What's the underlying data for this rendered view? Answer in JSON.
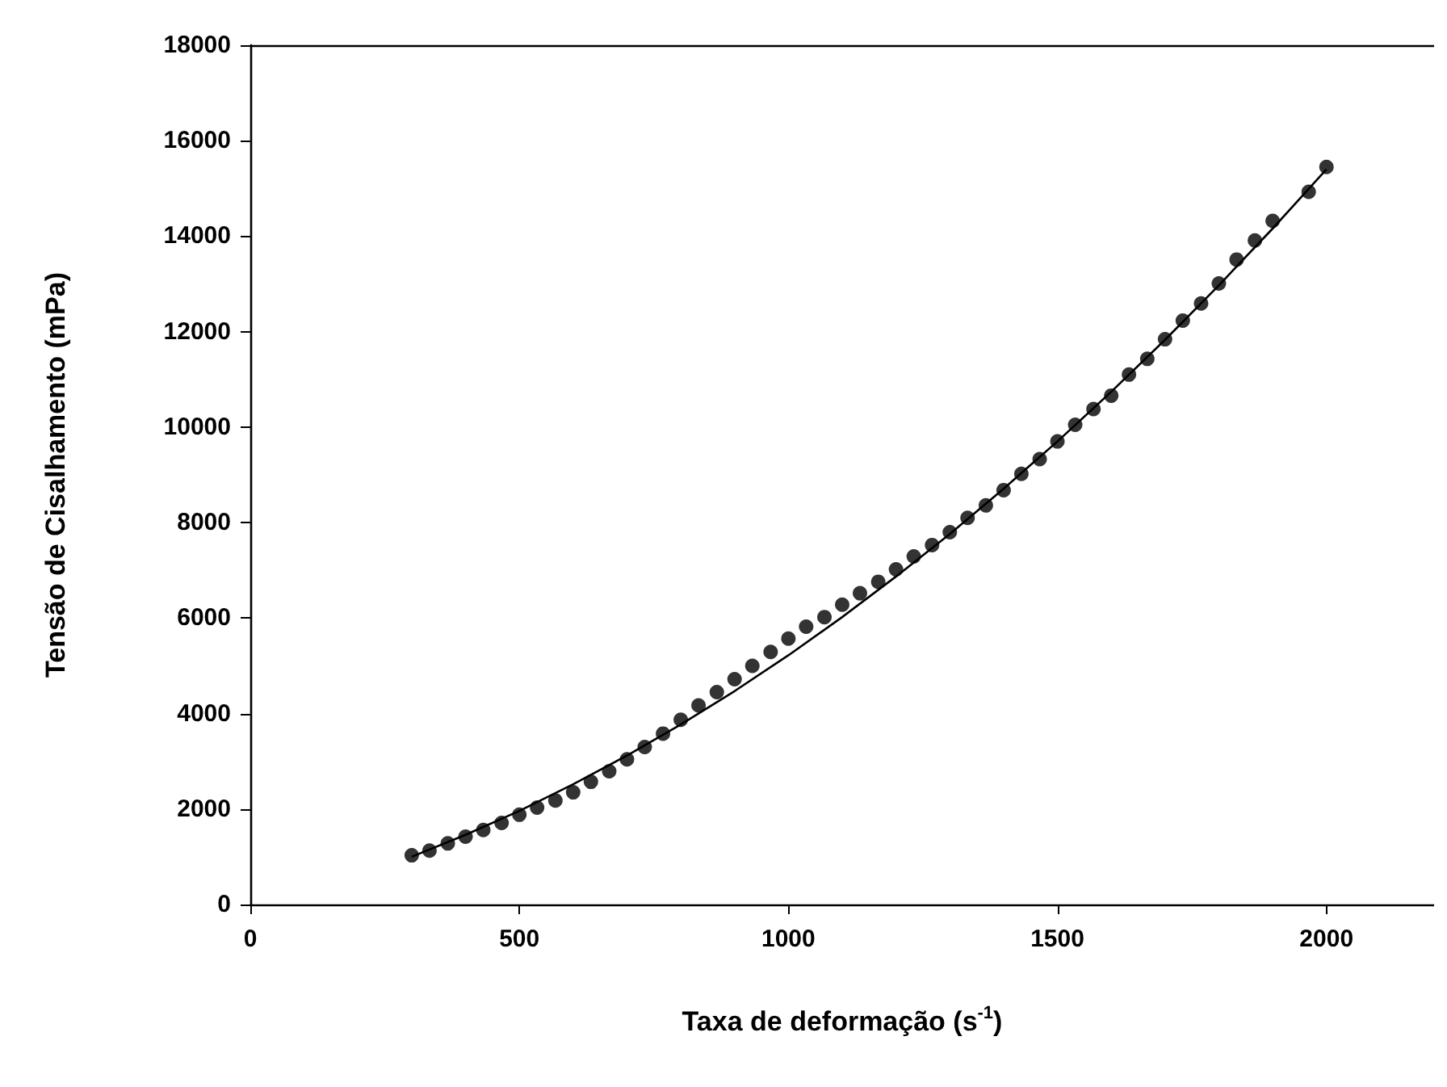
{
  "chart_data": {
    "type": "scatter",
    "xlabel": "Taxa de deformação (s$^{-1}$)",
    "ylabel": "Tensão de Cisalhamento (mPa)",
    "xlim": [
      0,
      2200
    ],
    "xticks": [
      0,
      500,
      1000,
      1500,
      2000
    ],
    "ylim": [
      0,
      18000
    ],
    "yticks": [
      0,
      2000,
      4000,
      6000,
      8000,
      10000,
      12000,
      14000,
      16000,
      18000
    ],
    "grid": false,
    "marker": "circle",
    "series": [
      {
        "color": "#000000",
        "x": [
          300,
          333,
          367,
          400,
          433,
          467,
          500,
          533,
          567,
          600,
          633,
          667,
          700,
          733,
          767,
          800,
          833,
          867,
          900,
          933,
          967,
          1000,
          1033,
          1067,
          1100,
          1133,
          1167,
          1200,
          1233,
          1267,
          1300,
          1333,
          1367,
          1400,
          1433,
          1467,
          1500,
          1533,
          1567,
          1600,
          1633,
          1667,
          1700,
          1733,
          1767,
          1800,
          1833,
          1867,
          1900,
          1967,
          2000
        ],
        "values": [
          1030,
          1130,
          1280,
          1420,
          1560,
          1710,
          1880,
          2030,
          2180,
          2350,
          2570,
          2790,
          3040,
          3300,
          3580,
          3870,
          4170,
          4450,
          4720,
          5000,
          5290,
          5570,
          5820,
          6020,
          6280,
          6520,
          6760,
          7020,
          7290,
          7530,
          7800,
          8100,
          8360,
          8680,
          9020,
          9330,
          9700,
          10050,
          10380,
          10660,
          11100,
          11430,
          11840,
          12230,
          12590,
          13010,
          13510,
          13910,
          14320,
          14930,
          15450
        ]
      },
      {
        "type": "line",
        "color": "#000000",
        "marker": "none",
        "line_style": "solid",
        "x": [
          300,
          400,
          500,
          600,
          700,
          800,
          900,
          1000,
          1100,
          1200,
          1300,
          1400,
          1500,
          1600,
          1700,
          1800,
          1900,
          2000
        ],
        "values": [
          1000,
          1460,
          1960,
          2520,
          3120,
          3770,
          4470,
          5220,
          6020,
          6870,
          7760,
          8710,
          9700,
          10740,
          11830,
          12970,
          14160,
          15400
        ]
      }
    ]
  }
}
